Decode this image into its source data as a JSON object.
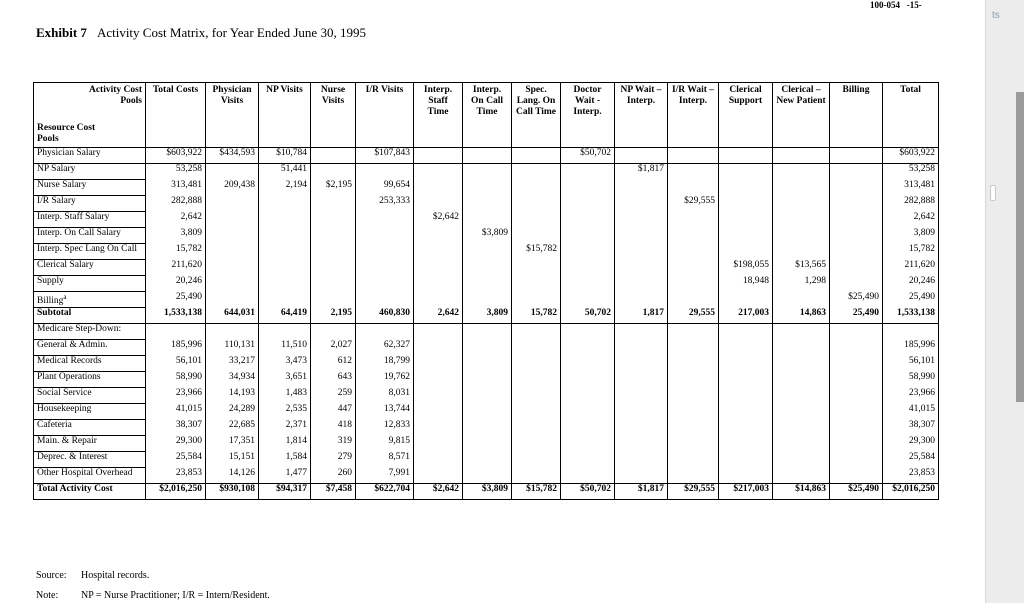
{
  "page_ref": "100-054   -15-",
  "side_label": "ts",
  "header": {
    "exhibit": "Exhibit 7",
    "title": "Activity Cost Matrix, for Year Ended June 30, 1995"
  },
  "table": {
    "corner": {
      "top": "Activity Cost Pools",
      "bottom": "Resource Cost Pools"
    },
    "columns": [
      "Total Costs",
      "Physician Visits",
      "NP Visits",
      "Nurse Visits",
      "I/R Visits",
      "Interp. Staff Time",
      "Interp. On Call Time",
      "Spec. Lang. On Call Time",
      "Doctor Wait - Interp.",
      "NP Wait – Interp.",
      "I/R Wait – Interp.",
      "Clerical Support",
      "Clerical – New Patient",
      "Billing",
      "Total"
    ],
    "rows": [
      {
        "label": "Physician Salary",
        "cells": [
          "$603,922",
          "$434,593",
          "$10,784",
          null,
          "$107,843",
          null,
          null,
          null,
          "$50,702",
          null,
          null,
          null,
          null,
          null,
          "$603,922"
        ]
      },
      {
        "label": "NP Salary",
        "cells": [
          "53,258",
          null,
          "51,441",
          null,
          null,
          null,
          null,
          null,
          null,
          "$1,817",
          null,
          null,
          null,
          null,
          "53,258"
        ]
      },
      {
        "label": "Nurse Salary",
        "cells": [
          "313,481",
          "209,438",
          "2,194",
          "$2,195",
          "99,654",
          null,
          null,
          null,
          null,
          null,
          null,
          null,
          null,
          null,
          "313,481"
        ]
      },
      {
        "label": "I/R Salary",
        "cells": [
          "282,888",
          null,
          null,
          null,
          "253,333",
          null,
          null,
          null,
          null,
          null,
          "$29,555",
          null,
          null,
          null,
          "282,888"
        ]
      },
      {
        "label": "Interp. Staff Salary",
        "cells": [
          "2,642",
          null,
          null,
          null,
          null,
          "$2,642",
          null,
          null,
          null,
          null,
          null,
          null,
          null,
          null,
          "2,642"
        ]
      },
      {
        "label": "Interp. On Call Salary",
        "cells": [
          "3,809",
          null,
          null,
          null,
          null,
          null,
          "$3,809",
          null,
          null,
          null,
          null,
          null,
          null,
          null,
          "3,809"
        ]
      },
      {
        "label": "Interp. Spec Lang On Call",
        "cells": [
          "15,782",
          null,
          null,
          null,
          null,
          null,
          null,
          "$15,782",
          null,
          null,
          null,
          null,
          null,
          null,
          "15,782"
        ]
      },
      {
        "label": "Clerical Salary",
        "cells": [
          "211,620",
          null,
          null,
          null,
          null,
          null,
          null,
          null,
          null,
          null,
          null,
          "$198,055",
          "$13,565",
          null,
          "211,620"
        ]
      },
      {
        "label": "Supply",
        "cells": [
          "20,246",
          null,
          null,
          null,
          null,
          null,
          null,
          null,
          null,
          null,
          null,
          "18,948",
          "1,298",
          null,
          "20,246"
        ]
      },
      {
        "label": "Billing",
        "footnote": "a",
        "cells": [
          "25,490",
          null,
          null,
          null,
          null,
          null,
          null,
          null,
          null,
          null,
          null,
          null,
          null,
          "$25,490",
          "25,490"
        ]
      },
      {
        "label": "Subtotal",
        "emphasis": "bold",
        "cells": [
          "1,533,138",
          "644,031",
          "64,419",
          "2,195",
          "460,830",
          "2,642",
          "3,809",
          "15,782",
          "50,702",
          "1,817",
          "29,555",
          "217,003",
          "14,863",
          "25,490",
          "1,533,138"
        ]
      },
      {
        "label": "Medicare Step-Down:",
        "cells": [
          null,
          null,
          null,
          null,
          null,
          null,
          null,
          null,
          null,
          null,
          null,
          null,
          null,
          null,
          null
        ]
      },
      {
        "label": "General & Admin.",
        "cells": [
          "185,996",
          "110,131",
          "11,510",
          "2,027",
          "62,327",
          null,
          null,
          null,
          null,
          null,
          null,
          null,
          null,
          null,
          "185,996"
        ]
      },
      {
        "label": "Medical Records",
        "cells": [
          "56,101",
          "33,217",
          "3,473",
          "612",
          "18,799",
          null,
          null,
          null,
          null,
          null,
          null,
          null,
          null,
          null,
          "56,101"
        ]
      },
      {
        "label": "Plant Operations",
        "cells": [
          "58,990",
          "34,934",
          "3,651",
          "643",
          "19,762",
          null,
          null,
          null,
          null,
          null,
          null,
          null,
          null,
          null,
          "58,990"
        ]
      },
      {
        "label": "Social Service",
        "cells": [
          "23,966",
          "14,193",
          "1,483",
          "259",
          "8,031",
          null,
          null,
          null,
          null,
          null,
          null,
          null,
          null,
          null,
          "23,966"
        ]
      },
      {
        "label": "Housekeeping",
        "cells": [
          "41,015",
          "24,289",
          "2,535",
          "447",
          "13,744",
          null,
          null,
          null,
          null,
          null,
          null,
          null,
          null,
          null,
          "41,015"
        ]
      },
      {
        "label": "Cafeteria",
        "cells": [
          "38,307",
          "22,685",
          "2,371",
          "418",
          "12,833",
          null,
          null,
          null,
          null,
          null,
          null,
          null,
          null,
          null,
          "38,307"
        ]
      },
      {
        "label": "Main. & Repair",
        "cells": [
          "29,300",
          "17,351",
          "1,814",
          "319",
          "9,815",
          null,
          null,
          null,
          null,
          null,
          null,
          null,
          null,
          null,
          "29,300"
        ]
      },
      {
        "label": "Deprec. & Interest",
        "cells": [
          "25,584",
          "15,151",
          "1,584",
          "279",
          "8,571",
          null,
          null,
          null,
          null,
          null,
          null,
          null,
          null,
          null,
          "25,584"
        ]
      },
      {
        "label": "Other Hospital Overhead",
        "cells": [
          "23,853",
          "14,126",
          "1,477",
          "260",
          "7,991",
          null,
          null,
          null,
          null,
          null,
          null,
          null,
          null,
          null,
          "23,853"
        ]
      },
      {
        "label": "Total Activity Cost",
        "emphasis": "bold",
        "cells": [
          "$2,016,250",
          "$930,108",
          "$94,317",
          "$7,458",
          "$622,704",
          "$2,642",
          "$3,809",
          "$15,782",
          "$50,702",
          "$1,817",
          "$29,555",
          "$217,003",
          "$14,863",
          "$25,490",
          "$2,016,250"
        ]
      }
    ]
  },
  "notes": [
    {
      "label": "Source:",
      "text": "Hospital records."
    },
    {
      "label": "Note:",
      "text": "NP = Nurse Practitioner; I/R = Intern/Resident."
    }
  ]
}
